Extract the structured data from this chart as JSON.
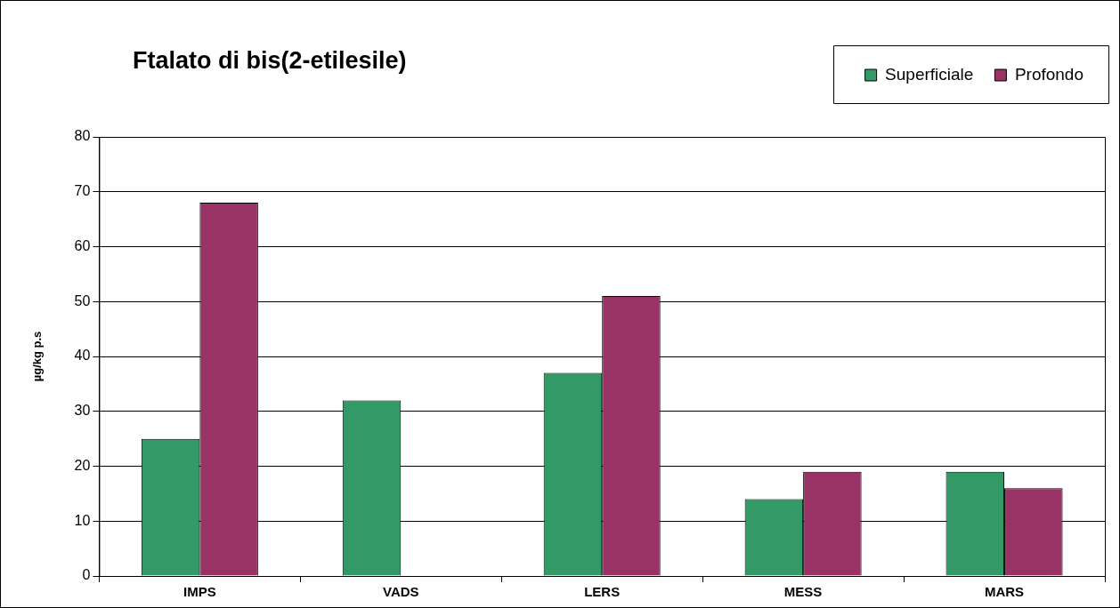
{
  "chart_data": {
    "type": "bar",
    "title": "Ftalato di bis(2-etilesile)",
    "ylabel": "µg/kg p.s",
    "categories": [
      "IMPS",
      "VADS",
      "LERS",
      "MESS",
      "MARS"
    ],
    "series": [
      {
        "name": "Superficiale",
        "color": "#339966",
        "values": [
          25,
          32,
          37,
          14,
          19
        ]
      },
      {
        "name": "Profondo",
        "color": "#993366",
        "values": [
          68,
          null,
          51,
          19,
          16
        ]
      }
    ],
    "ylim": [
      0,
      80
    ],
    "yticks": [
      0,
      10,
      20,
      30,
      40,
      50,
      60,
      70,
      80
    ],
    "grid": "y",
    "legend": "top right"
  }
}
